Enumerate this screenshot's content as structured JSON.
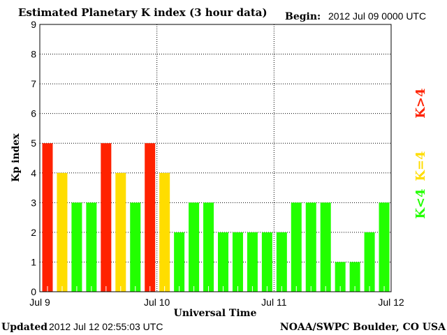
{
  "chart_data": {
    "type": "bar",
    "title": "Estimated Planetary K index (3 hour data)",
    "begin_label": "Begin:",
    "begin_value": "2012 Jul 09 0000 UTC",
    "xlabel": "Universal Time",
    "ylabel": "Kp index",
    "ylim": [
      0,
      9
    ],
    "yticks": [
      "0",
      "1",
      "2",
      "3",
      "4",
      "5",
      "6",
      "7",
      "8",
      "9"
    ],
    "xticks": [
      "Jul 9",
      "Jul 10",
      "Jul 11",
      "Jul 12"
    ],
    "grid": true,
    "values": [
      5,
      4,
      3,
      3,
      5,
      4,
      3,
      5,
      4,
      2,
      3,
      3,
      2,
      2,
      2,
      2,
      2,
      3,
      3,
      3,
      1,
      1,
      2,
      3
    ],
    "colors": {
      "high": "#ff2200",
      "equal": "#ffdd00",
      "low": "#22ff00"
    },
    "legend": [
      {
        "label": "K>4",
        "color": "#ff2200"
      },
      {
        "label": "K=4",
        "color": "#ffdd00"
      },
      {
        "label": "K<4",
        "color": "#22ff00"
      }
    ],
    "legend_placement": "right"
  },
  "footer": {
    "updated_label": "Updated",
    "updated_value": "2012 Jul 12 02:55:03 UTC",
    "source": "NOAA/SWPC Boulder, CO USA"
  }
}
